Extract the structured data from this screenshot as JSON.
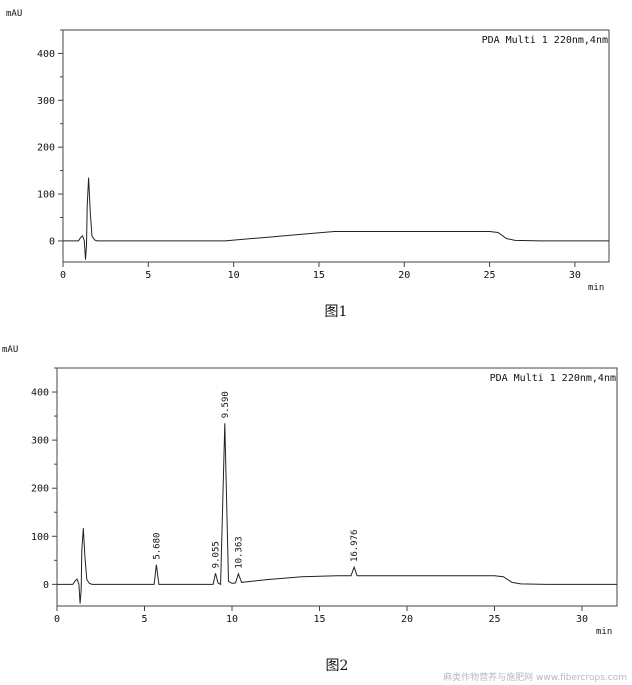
{
  "chart_data": [
    {
      "type": "line",
      "unit": "mAU",
      "xunit": "min",
      "legend": "PDA Multi 1 220nm,4nm",
      "caption": "图1",
      "xlim": [
        0,
        32
      ],
      "ylim": [
        -45,
        450
      ],
      "xticks": [
        0,
        5,
        10,
        15,
        20,
        25,
        30
      ],
      "yticks": [
        0,
        100,
        200,
        300,
        400
      ],
      "x": [
        0,
        0.9,
        1.05,
        1.15,
        1.25,
        1.32,
        1.38,
        1.42,
        1.5,
        1.6,
        1.7,
        1.85,
        2.0,
        3,
        5,
        8,
        9.5,
        12,
        14,
        15.9,
        18,
        20,
        22,
        24,
        25,
        25.5,
        26,
        26.5,
        28,
        30,
        32
      ],
      "y": [
        0,
        0,
        8,
        11,
        0,
        -40,
        -10,
        75,
        135,
        60,
        10,
        2,
        0,
        0,
        0,
        0,
        0,
        8,
        14,
        20,
        20,
        20,
        20,
        20,
        20,
        18,
        5,
        1,
        0,
        0,
        0
      ]
    },
    {
      "type": "line",
      "unit": "mAU",
      "xunit": "min",
      "legend": "PDA Multi 1 220nm,4nm",
      "caption": "图2",
      "xlim": [
        0,
        32
      ],
      "ylim": [
        -45,
        450
      ],
      "xticks": [
        0,
        5,
        10,
        15,
        20,
        25,
        30
      ],
      "yticks": [
        0,
        100,
        200,
        300,
        400
      ],
      "x": [
        0,
        0.9,
        1.05,
        1.15,
        1.25,
        1.32,
        1.38,
        1.42,
        1.5,
        1.6,
        1.7,
        1.85,
        2.0,
        3,
        5,
        5.55,
        5.68,
        5.82,
        6.3,
        8.5,
        8.92,
        9.055,
        9.2,
        9.35,
        9.59,
        9.8,
        10.0,
        10.2,
        10.363,
        10.55,
        12,
        14,
        16,
        16.8,
        16.976,
        17.15,
        18,
        20,
        22,
        24,
        25,
        25.5,
        26,
        26.5,
        28,
        30,
        32
      ],
      "y": [
        0,
        0,
        8,
        11,
        0,
        -40,
        -10,
        70,
        117,
        55,
        10,
        2,
        0,
        0,
        0,
        0,
        41,
        0,
        0,
        0,
        0,
        23,
        3,
        0,
        335,
        6,
        2,
        3,
        22,
        4,
        10,
        16,
        18,
        18,
        36,
        18,
        18,
        18,
        18,
        18,
        18,
        16,
        4,
        1,
        0,
        0,
        0
      ],
      "annotations": [
        {
          "x": 5.68,
          "y": 41,
          "label": "5.680"
        },
        {
          "x": 9.055,
          "y": 23,
          "label": "9.055"
        },
        {
          "x": 9.59,
          "y": 335,
          "label": "9.590"
        },
        {
          "x": 10.363,
          "y": 22,
          "label": "10.363"
        },
        {
          "x": 16.976,
          "y": 36,
          "label": "16.976"
        }
      ]
    }
  ],
  "watermark": "麻类作物营养与施肥网 www.fibercrops.com"
}
